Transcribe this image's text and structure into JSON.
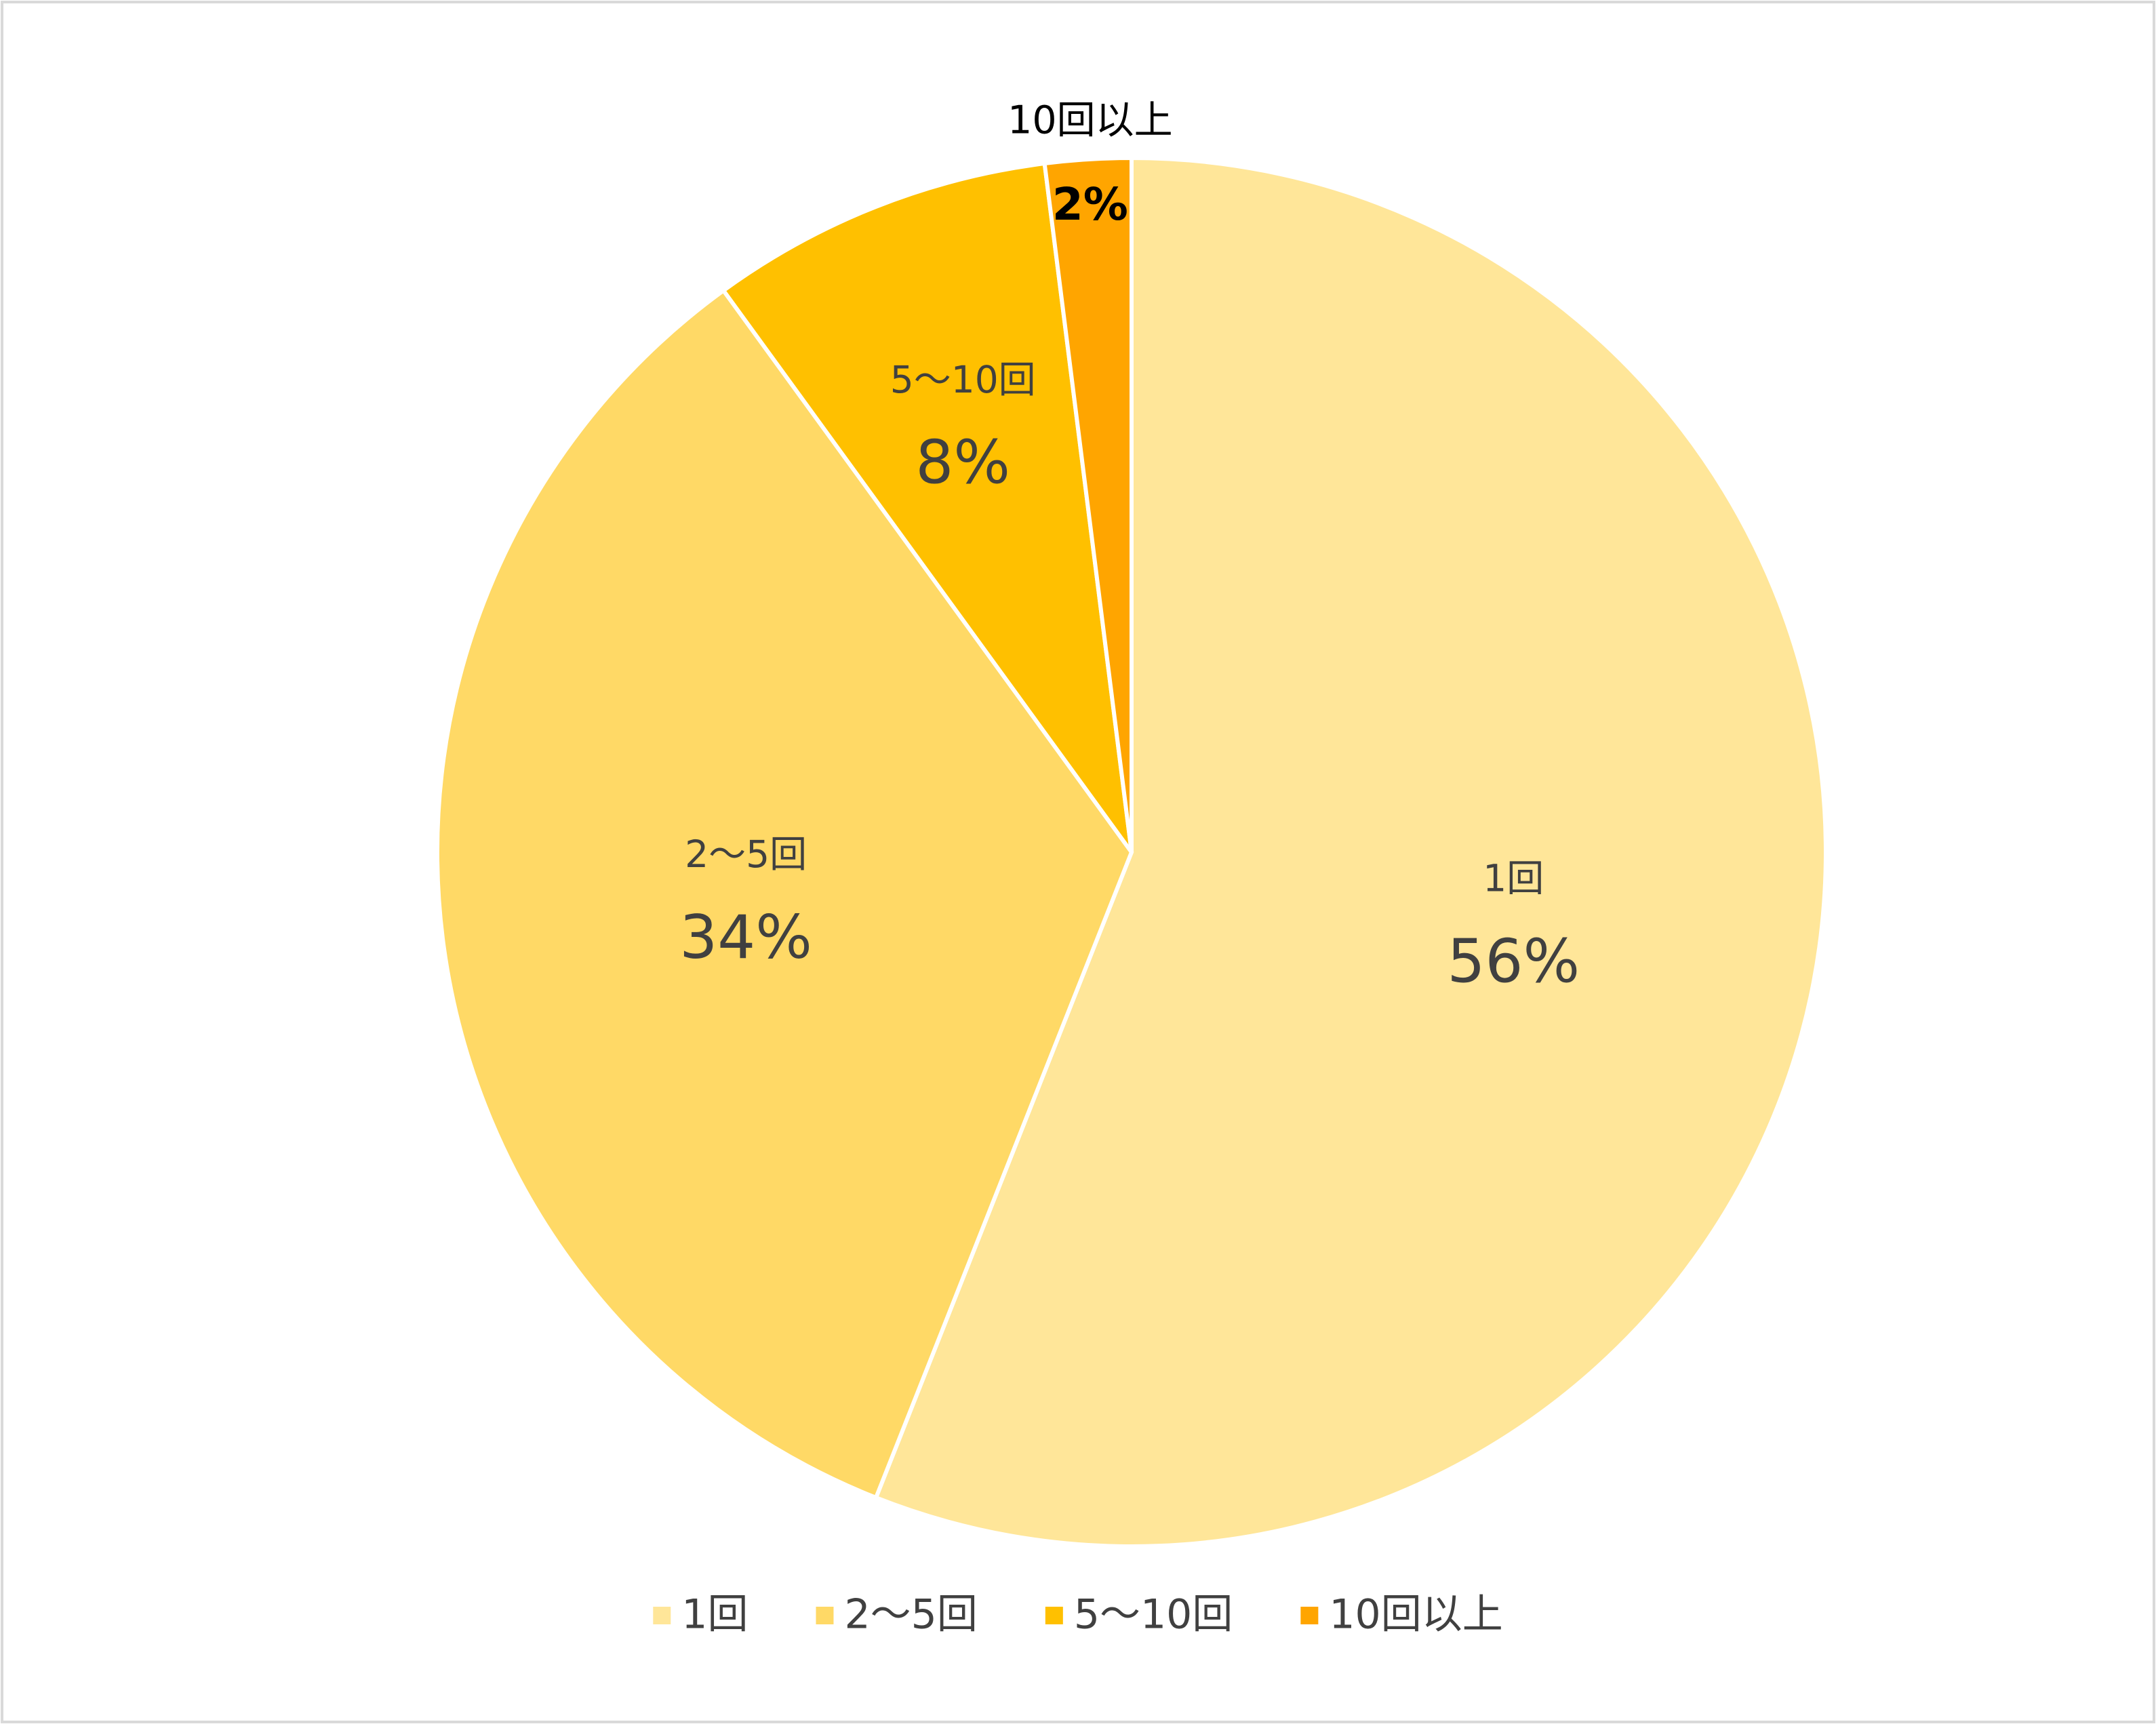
{
  "chart_data": {
    "type": "pie",
    "categories": [
      "1回",
      "2～5回",
      "5～10回",
      "10回以上"
    ],
    "values": [
      56,
      34,
      8,
      2
    ],
    "value_labels": [
      "56%",
      "34%",
      "8%",
      "2%"
    ],
    "colors": [
      "#FFE699",
      "#FFD966",
      "#FFC000",
      "#FFA500"
    ],
    "legend": "bottom"
  }
}
